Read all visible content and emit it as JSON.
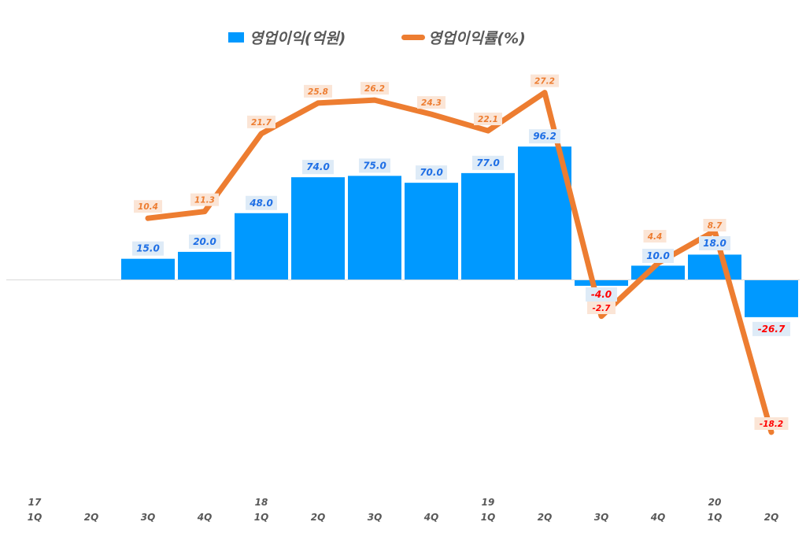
{
  "legend": {
    "bar_label": "영업이익(억원)",
    "line_label": "영업이익률(%)"
  },
  "colors": {
    "bar": "#0099ff",
    "line": "#ed7d31",
    "bar_label_text": "#1f6fe5",
    "bar_label_bg": "#deebf7",
    "line_label_text": "#ed7d31",
    "line_label_bg": "#fbe5d6",
    "negative_label_text": "#ff0000",
    "axis_text": "#595959",
    "baseline": "#d9d9d9"
  },
  "x_axis": {
    "years": [
      {
        "index": 0,
        "label": "17"
      },
      {
        "index": 4,
        "label": "18"
      },
      {
        "index": 8,
        "label": "19"
      },
      {
        "index": 12,
        "label": "20"
      }
    ],
    "quarters": [
      "1Q",
      "2Q",
      "3Q",
      "4Q",
      "1Q",
      "2Q",
      "3Q",
      "4Q",
      "1Q",
      "2Q",
      "3Q",
      "4Q",
      "1Q",
      "2Q"
    ]
  },
  "chart_data": {
    "type": "bar",
    "title": "",
    "xlabel": "",
    "ylabel": "",
    "categories": [
      "17 1Q",
      "17 2Q",
      "17 3Q",
      "17 4Q",
      "18 1Q",
      "18 2Q",
      "18 3Q",
      "18 4Q",
      "19 1Q",
      "19 2Q",
      "19 3Q",
      "19 4Q",
      "20 1Q",
      "20 2Q"
    ],
    "series": [
      {
        "name": "영업이익(억원)",
        "type": "bar",
        "axis": "primary",
        "values": [
          null,
          null,
          15.0,
          20.0,
          48.0,
          74.0,
          75.0,
          70.0,
          77.0,
          96.2,
          -4.0,
          10.0,
          18.0,
          -26.7
        ],
        "labels": [
          null,
          null,
          "15.0",
          "20.0",
          "48.0",
          "74.0",
          "75.0",
          "70.0",
          "77.0",
          "96.2",
          "-4.0",
          "10.0",
          "18.0",
          "-26.7"
        ]
      },
      {
        "name": "영업이익률(%)",
        "type": "line",
        "axis": "secondary",
        "values": [
          null,
          null,
          10.4,
          11.3,
          21.7,
          25.8,
          26.2,
          24.3,
          22.1,
          27.2,
          -2.7,
          4.4,
          8.7,
          -18.2
        ],
        "labels": [
          null,
          null,
          "10.4",
          "11.3",
          "21.7",
          "25.8",
          "26.2",
          "24.3",
          "22.1",
          "27.2",
          "-2.7",
          "4.4",
          "8.7",
          "-18.2"
        ]
      }
    ],
    "legend_position": "top",
    "grid": false,
    "axes_visible": false
  }
}
